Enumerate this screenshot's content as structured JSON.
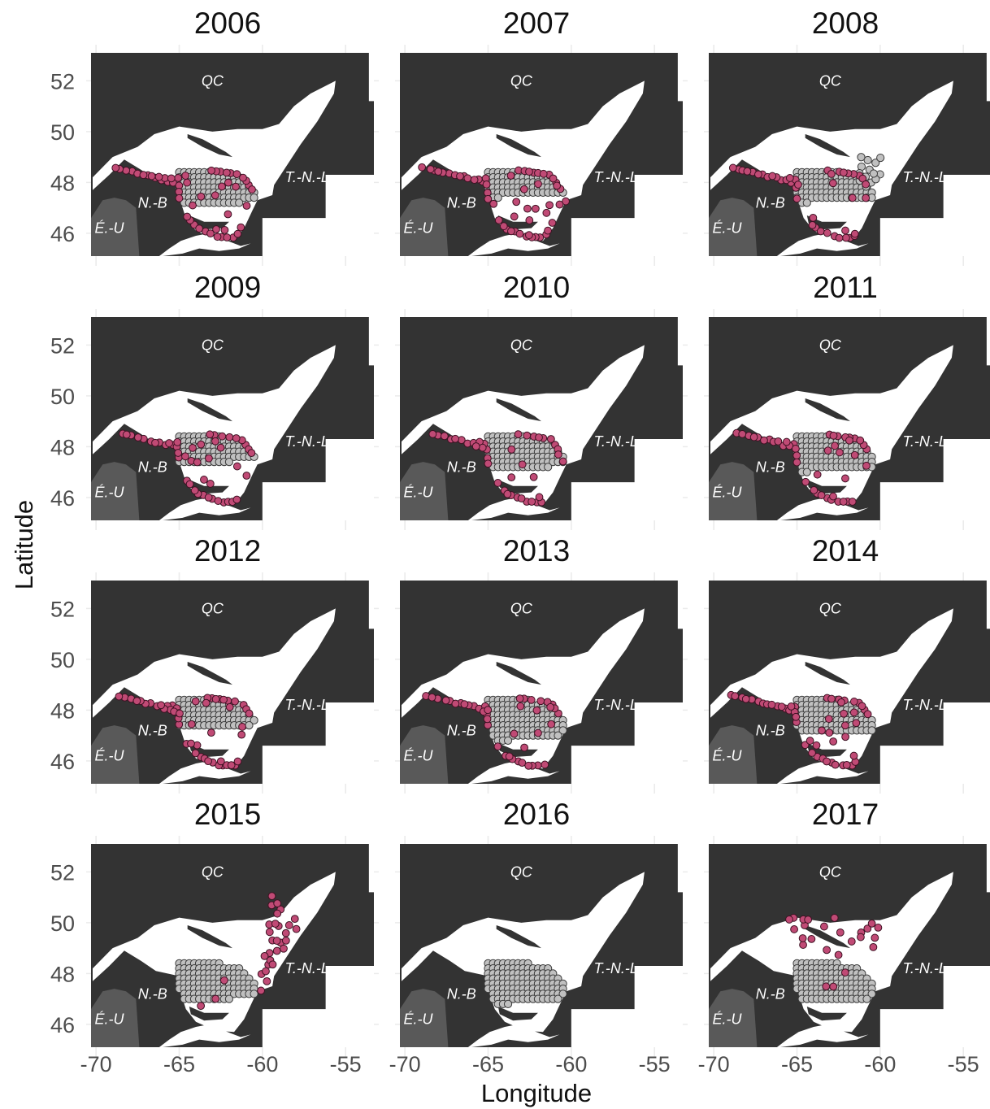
{
  "chart_data": {
    "type": "scatter",
    "subtype": "faceted-map",
    "facet_grid": "3 columns x 4 rows",
    "xlabel": "Longitude",
    "ylabel": "Latitude",
    "xlim": [
      -70.3,
      -53.3
    ],
    "ylim": [
      45.1,
      53.1
    ],
    "x_ticks": [
      -70,
      -65,
      -60,
      -55
    ],
    "x_tick_labels": [
      "-70",
      "-65",
      "-60",
      "-55"
    ],
    "y_ticks": [
      46,
      48,
      50,
      52
    ],
    "y_tick_labels": [
      "46",
      "48",
      "50",
      "52"
    ],
    "grid": true,
    "land_color": "#333333",
    "us_land_color": "#595959",
    "region_labels": [
      {
        "text": "QC",
        "lon": -63.0,
        "lat": 52.0
      },
      {
        "text": "T.-N.-L.",
        "lon": -57.2,
        "lat": 48.2
      },
      {
        "text": "N.-B",
        "lon": -66.6,
        "lat": 47.2
      },
      {
        "text": "É.-U",
        "lon": -69.2,
        "lat": 46.2
      }
    ],
    "point_categories": [
      {
        "key": "mature",
        "color": "#c04a75"
      },
      {
        "key": "immature",
        "color": "#c0c0c0"
      }
    ],
    "panels": [
      {
        "year": "2006",
        "mature": 108,
        "immature": 95,
        "immature_region": "south",
        "mature_extent": "full"
      },
      {
        "year": "2007",
        "mature": 142,
        "immature": 70,
        "immature_region": "south",
        "mature_extent": "full"
      },
      {
        "year": "2008",
        "mature": 70,
        "immature": 85,
        "immature_region": "south+east",
        "mature_extent": "full"
      },
      {
        "year": "2009",
        "mature": 98,
        "immature": 78,
        "immature_region": "south",
        "mature_extent": "full"
      },
      {
        "year": "2010",
        "mature": 60,
        "immature": 95,
        "immature_region": "south",
        "mature_extent": "full"
      },
      {
        "year": "2011",
        "mature": 78,
        "immature": 100,
        "immature_region": "south",
        "mature_extent": "full"
      },
      {
        "year": "2012",
        "mature": 88,
        "immature": 82,
        "immature_region": "south",
        "mature_extent": "full"
      },
      {
        "year": "2013",
        "mature": 62,
        "immature": 115,
        "immature_region": "south",
        "mature_extent": "full"
      },
      {
        "year": "2014",
        "mature": 112,
        "immature": 98,
        "immature_region": "south",
        "mature_extent": "full"
      },
      {
        "year": "2015",
        "mature": 28,
        "immature": 108,
        "immature_region": "south",
        "mature_extent": "east"
      },
      {
        "year": "2016",
        "mature": 0,
        "immature": 115,
        "immature_region": "south",
        "mature_extent": "none"
      },
      {
        "year": "2017",
        "mature": 22,
        "immature": 112,
        "immature_region": "south",
        "mature_extent": "north"
      }
    ]
  }
}
